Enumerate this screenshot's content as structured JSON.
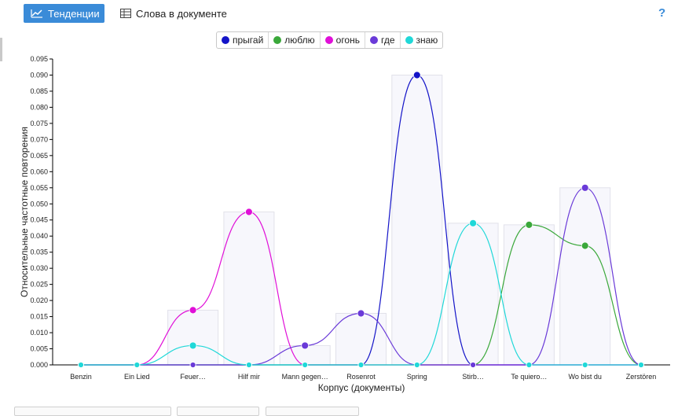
{
  "toolbar": {
    "trends_label": "Тенденции",
    "words_label": "Слова в документе",
    "help_label": "?"
  },
  "icons": {
    "trends": "line-chart-icon",
    "words": "table-grid-icon",
    "help": "help-icon"
  },
  "colors": {
    "accent": "#3a8bd8"
  },
  "chart_data": {
    "type": "line",
    "xlabel": "Корпус (документы)",
    "ylabel": "Относительные частотные повторения",
    "ylim": [
      0,
      0.095
    ],
    "yticks": [
      "0.000",
      "0.005",
      "0.010",
      "0.015",
      "0.020",
      "0.025",
      "0.030",
      "0.035",
      "0.040",
      "0.045",
      "0.050",
      "0.055",
      "0.060",
      "0.065",
      "0.070",
      "0.075",
      "0.080",
      "0.085",
      "0.090",
      "0.095"
    ],
    "categories": [
      "Benzin",
      "Ein Lied",
      "Feuer…",
      "Hilf mir",
      "Mann gegen…",
      "Rosenrot",
      "Spring",
      "Stirb…",
      "Te quiero…",
      "Wo bist du",
      "Zerstören"
    ],
    "legend_position": "top-center",
    "series": [
      {
        "name": "прыгай",
        "color": "#1414c8",
        "values": [
          0,
          0,
          0,
          0,
          0,
          0,
          0.09,
          0,
          0,
          0,
          0
        ]
      },
      {
        "name": "люблю",
        "color": "#3aa83a",
        "values": [
          0,
          0,
          0,
          0,
          0,
          0,
          0,
          0,
          0.0435,
          0.037,
          0
        ]
      },
      {
        "name": "огонь",
        "color": "#e010d8",
        "values": [
          0,
          0,
          0.017,
          0.0475,
          0,
          0,
          0,
          0,
          0,
          0,
          0
        ]
      },
      {
        "name": "где",
        "color": "#6a3ad8",
        "values": [
          0,
          0,
          0,
          0,
          0.006,
          0.016,
          0,
          0,
          0,
          0.055,
          0
        ]
      },
      {
        "name": "знаю",
        "color": "#20d8d8",
        "values": [
          0,
          0,
          0.006,
          0,
          0,
          0,
          0,
          0.044,
          0,
          0,
          0
        ]
      }
    ],
    "bars": [
      0,
      0,
      0.017,
      0.0475,
      0.006,
      0.016,
      0.09,
      0.044,
      0.0435,
      0.055,
      0
    ]
  }
}
